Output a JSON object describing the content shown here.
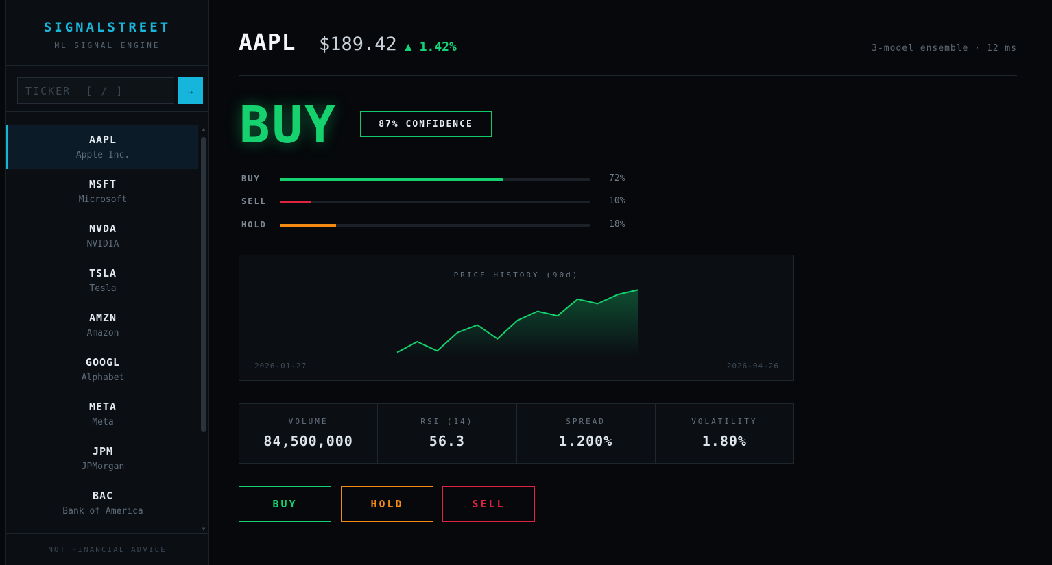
{
  "brand": {
    "name": "SIGNALSTREET",
    "subtitle": "ML SIGNAL ENGINE"
  },
  "search": {
    "placeholder": "TICKER  [ / ]",
    "go_icon": "arrow-right-icon",
    "go_label": "→"
  },
  "tickers": [
    {
      "symbol": "AAPL",
      "name": "Apple Inc.",
      "active": true
    },
    {
      "symbol": "MSFT",
      "name": "Microsoft",
      "active": false
    },
    {
      "symbol": "NVDA",
      "name": "NVIDIA",
      "active": false
    },
    {
      "symbol": "TSLA",
      "name": "Tesla",
      "active": false
    },
    {
      "symbol": "AMZN",
      "name": "Amazon",
      "active": false
    },
    {
      "symbol": "GOOGL",
      "name": "Alphabet",
      "active": false
    },
    {
      "symbol": "META",
      "name": "Meta",
      "active": false
    },
    {
      "symbol": "JPM",
      "name": "JPMorgan",
      "active": false
    },
    {
      "symbol": "BAC",
      "name": "Bank of America",
      "active": false
    }
  ],
  "sidebar_footer": "NOT FINANCIAL ADVICE",
  "header": {
    "symbol": "AAPL",
    "price": "$189.42",
    "change": "▲ 1.42%",
    "meta": "3-model ensemble · 12 ms"
  },
  "signal": {
    "label": "BUY",
    "confidence": "87% CONFIDENCE"
  },
  "probabilities": [
    {
      "label": "BUY",
      "value": 72,
      "display": "72%",
      "color": "#15d16e"
    },
    {
      "label": "SELL",
      "value": 10,
      "display": "10%",
      "color": "#e0243f"
    },
    {
      "label": "HOLD",
      "value": 18,
      "display": "18%",
      "color": "#f28a14"
    }
  ],
  "chart_data": {
    "type": "area",
    "title": "PRICE HISTORY (90d)",
    "x_start": "2026-01-27",
    "x_end": "2026-04-26",
    "values": [
      150,
      157,
      151,
      163,
      168,
      159,
      171,
      177,
      174,
      185,
      182,
      188,
      191
    ],
    "ylim": [
      148,
      193
    ],
    "line_color": "#15d16e"
  },
  "stats": [
    {
      "label": "VOLUME",
      "value": "84,500,000"
    },
    {
      "label": "RSI (14)",
      "value": "56.3"
    },
    {
      "label": "SPREAD",
      "value": "1.200%"
    },
    {
      "label": "VOLATILITY",
      "value": "1.80%"
    }
  ],
  "actions": [
    {
      "label": "BUY",
      "color": "#15d16e"
    },
    {
      "label": "HOLD",
      "color": "#f28a14"
    },
    {
      "label": "SELL",
      "color": "#e0243f"
    }
  ]
}
